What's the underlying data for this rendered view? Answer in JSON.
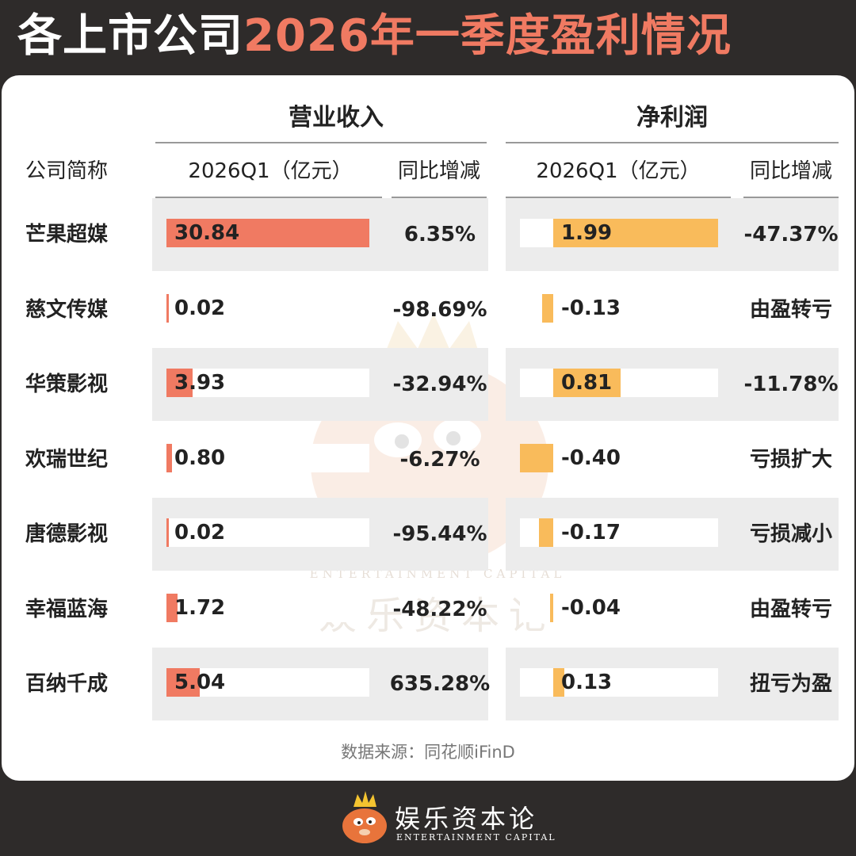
{
  "title": {
    "part1": "各上市公司",
    "part2": "2026年一季度盈利情况"
  },
  "headers": {
    "company": "公司简称",
    "revenue_group": "营业收入",
    "profit_group": "净利润",
    "revenue_value": "2026Q1（亿元）",
    "revenue_change": "同比增减",
    "profit_value": "2026Q1（亿元）",
    "profit_change": "同比增减"
  },
  "colors": {
    "revenue_bar": "#f07a62",
    "profit_bar": "#f9bb5b",
    "title_accent": "#f07a62"
  },
  "rows": [
    {
      "name": "芒果超媒",
      "revenue": "30.84",
      "revenue_change": "6.35%",
      "profit": "1.99",
      "profit_change": "-47.37%"
    },
    {
      "name": "慈文传媒",
      "revenue": "0.02",
      "revenue_change": "-98.69%",
      "profit": "-0.13",
      "profit_change": "由盈转亏"
    },
    {
      "name": "华策影视",
      "revenue": "3.93",
      "revenue_change": "-32.94%",
      "profit": "0.81",
      "profit_change": "-11.78%"
    },
    {
      "name": "欢瑞世纪",
      "revenue": "0.80",
      "revenue_change": "-6.27%",
      "profit": "-0.40",
      "profit_change": "亏损扩大"
    },
    {
      "name": "唐德影视",
      "revenue": "0.02",
      "revenue_change": "-95.44%",
      "profit": "-0.17",
      "profit_change": "亏损减小"
    },
    {
      "name": "幸福蓝海",
      "revenue": "1.72",
      "revenue_change": "-48.22%",
      "profit": "-0.04",
      "profit_change": "由盈转亏"
    },
    {
      "name": "百纳千成",
      "revenue": "5.04",
      "revenue_change": "635.28%",
      "profit": "0.13",
      "profit_change": "扭亏为盈"
    }
  ],
  "source": "数据来源：同花顺iFinD",
  "watermark": {
    "en": "ENTERTAINMENT CAPITAL",
    "cn": "娱乐资本论"
  },
  "footer": {
    "brand_cn": "娱乐资本论",
    "brand_en": "ENTERTAINMENT CAPITAL",
    "logo_icon": "cartoon-mascot-icon"
  }
}
